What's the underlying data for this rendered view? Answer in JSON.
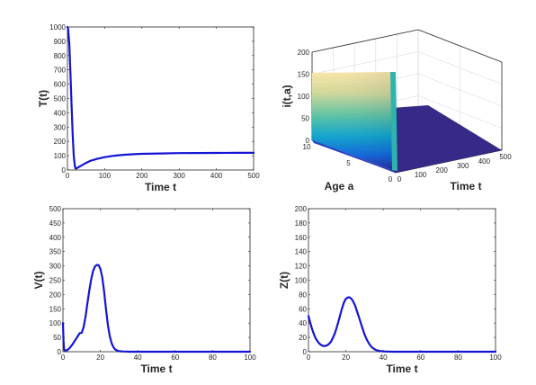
{
  "figure": {
    "background": "#ffffff",
    "line_color": "#1414d4"
  },
  "chart_data": [
    {
      "id": "T",
      "type": "line",
      "xlabel": "Time t",
      "ylabel": "T(t)",
      "xlim": [
        0,
        500
      ],
      "ylim": [
        0,
        1000
      ],
      "xticks": [
        0,
        100,
        200,
        300,
        400,
        500
      ],
      "yticks": [
        0,
        100,
        200,
        300,
        400,
        500,
        600,
        700,
        800,
        900,
        1000
      ],
      "series": [
        {
          "x": [
            0,
            2,
            5,
            8,
            11,
            14,
            17,
            20,
            22,
            25,
            30,
            40,
            50,
            60,
            80,
            100,
            120,
            150,
            180,
            200,
            250,
            300,
            350,
            400,
            450,
            500
          ],
          "y": [
            1000,
            985,
            880,
            680,
            450,
            250,
            100,
            25,
            10,
            12,
            20,
            35,
            50,
            62,
            78,
            90,
            98,
            106,
            111,
            113,
            116,
            118,
            119,
            119.5,
            120,
            120
          ]
        }
      ]
    },
    {
      "id": "i",
      "type": "surface",
      "xlabel": "Time t",
      "ylabel": "Age a",
      "zlabel": "i(t,a)",
      "tlim": [
        0,
        500
      ],
      "alim": [
        0,
        10
      ],
      "zlim": [
        0,
        200
      ],
      "tticks": [
        0,
        100,
        200,
        300,
        400,
        500
      ],
      "aticks": [
        0,
        5,
        10
      ],
      "zticks": [
        0,
        50,
        100,
        150,
        200
      ],
      "surface": "initial density about 140 at t = 0 over all ages, dropping to about 0 for t > 0",
      "peak_value": 140,
      "colormap": [
        "#352a87",
        "#0f5cdd",
        "#1481d6",
        "#06a4ca",
        "#2eb7a4",
        "#87bf77",
        "#d1bb59",
        "#fec832",
        "#f9fb0e"
      ]
    },
    {
      "id": "V",
      "type": "line",
      "xlabel": "Time t",
      "ylabel": "V(t)",
      "xlim": [
        0,
        100
      ],
      "ylim": [
        0,
        500
      ],
      "xticks": [
        0,
        20,
        40,
        60,
        80,
        100
      ],
      "yticks": [
        0,
        50,
        100,
        150,
        200,
        250,
        300,
        350,
        400,
        450,
        500
      ],
      "series": [
        {
          "x": [
            0,
            0.3,
            0.6,
            1,
            2,
            3,
            4,
            5,
            6,
            7,
            8,
            9,
            10,
            11,
            12,
            13,
            14,
            15,
            16,
            17,
            18,
            19,
            20,
            21,
            22,
            23,
            24,
            25,
            26,
            27,
            28,
            29,
            30,
            32,
            34,
            36,
            40,
            50,
            60,
            70,
            80,
            90,
            100
          ],
          "y": [
            100,
            40,
            10,
            4,
            5,
            9,
            16,
            25,
            35,
            45,
            55,
            65,
            66,
            85,
            120,
            165,
            210,
            250,
            280,
            297,
            303,
            303,
            290,
            260,
            210,
            150,
            95,
            55,
            30,
            15,
            8,
            4,
            2,
            1,
            0.5,
            0,
            0,
            0,
            0,
            0,
            0,
            0,
            0
          ]
        }
      ]
    },
    {
      "id": "Z",
      "type": "line",
      "xlabel": "Time t",
      "ylabel": "Z(t)",
      "xlim": [
        0,
        100
      ],
      "ylim": [
        0,
        200
      ],
      "xticks": [
        0,
        20,
        40,
        60,
        80,
        100
      ],
      "yticks": [
        0,
        20,
        40,
        60,
        80,
        100,
        120,
        140,
        160,
        180,
        200
      ],
      "series": [
        {
          "x": [
            0,
            1,
            2,
            3,
            4,
            5,
            6,
            7,
            8,
            9,
            10,
            11,
            12,
            13,
            14,
            15,
            16,
            17,
            18,
            19,
            20,
            21,
            22,
            23,
            24,
            25,
            26,
            27,
            28,
            29,
            30,
            31,
            32,
            33,
            34,
            35,
            36,
            38,
            40,
            42,
            45,
            50,
            60,
            70,
            80,
            90,
            100
          ],
          "y": [
            50,
            40,
            31,
            24,
            18,
            14,
            11,
            9,
            8,
            8,
            9,
            11,
            14,
            19,
            25,
            33,
            42,
            52,
            61,
            69,
            74,
            76,
            76,
            74,
            70,
            64,
            56,
            48,
            40,
            32,
            24,
            18,
            13,
            9,
            6,
            4,
            2.5,
            1,
            0.5,
            0.2,
            0,
            0,
            0,
            0,
            0,
            0,
            0
          ]
        }
      ]
    }
  ]
}
